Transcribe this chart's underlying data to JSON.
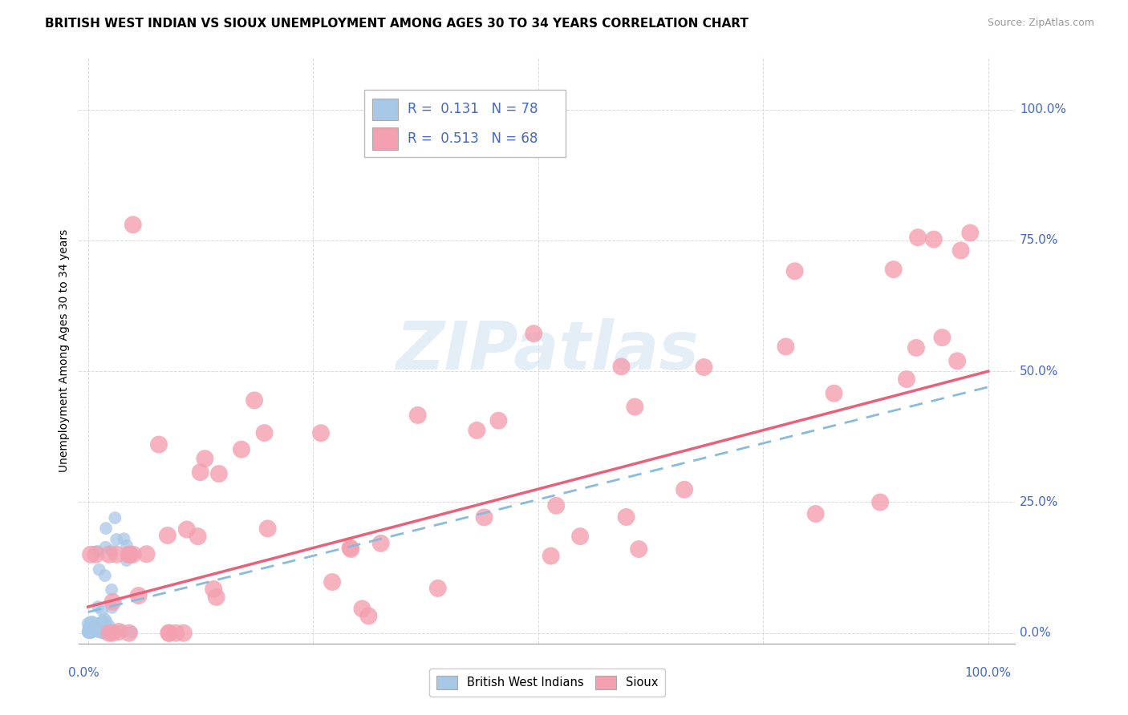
{
  "title": "BRITISH WEST INDIAN VS SIOUX UNEMPLOYMENT AMONG AGES 30 TO 34 YEARS CORRELATION CHART",
  "source": "Source: ZipAtlas.com",
  "ylabel": "Unemployment Among Ages 30 to 34 years",
  "ytick_values": [
    0,
    0.25,
    0.5,
    0.75,
    1.0
  ],
  "xtick_values": [
    0,
    0.25,
    0.5,
    0.75,
    1.0
  ],
  "r1": 0.131,
  "n1": 78,
  "r2": 0.513,
  "n2": 68,
  "color_bwi": "#a8c8e8",
  "color_sioux": "#f4a0b0",
  "color_bwi_line": "#88bbdd",
  "color_sioux_line": "#e8607a",
  "color_title": "#000000",
  "color_source": "#999999",
  "color_axis_labels": "#4466cc",
  "color_legend_text": "#4466cc",
  "background_color": "#ffffff",
  "grid_color": "#cccccc",
  "title_fontsize": 11,
  "axis_label_fontsize": 10,
  "tick_fontsize": 11,
  "legend_fontsize": 12,
  "sioux_line_start_y": 0.05,
  "sioux_line_end_y": 0.5,
  "bwi_line_start_y": 0.04,
  "bwi_line_end_y": 0.47
}
